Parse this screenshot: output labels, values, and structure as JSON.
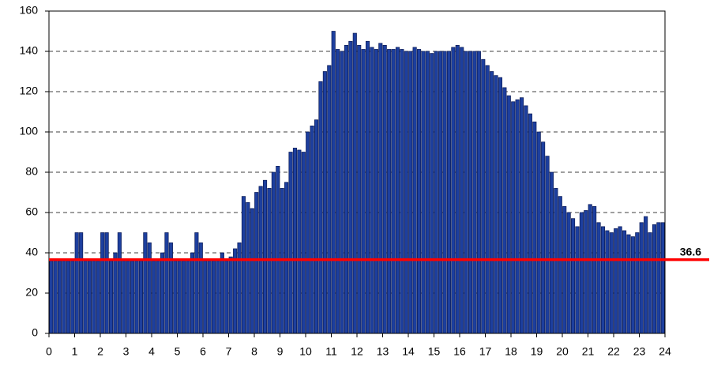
{
  "chart_data": {
    "type": "bar",
    "values": [
      36,
      36,
      36,
      36,
      36,
      36,
      50,
      50,
      36,
      36,
      36,
      36,
      50,
      50,
      36,
      40,
      50,
      36,
      36,
      36,
      36,
      36,
      50,
      45,
      36,
      36,
      40,
      50,
      45,
      36,
      36,
      36,
      36,
      40,
      50,
      45,
      36,
      36,
      36,
      36,
      40,
      36,
      38,
      42,
      45,
      68,
      65,
      62,
      70,
      73,
      76,
      72,
      80,
      83,
      72,
      75,
      90,
      92,
      91,
      90,
      100,
      103,
      106,
      125,
      130,
      133,
      150,
      141,
      140,
      143,
      145,
      149,
      143,
      141,
      145,
      142,
      141,
      144,
      143,
      141,
      141,
      142,
      141,
      140,
      140,
      142,
      141,
      140,
      140,
      139,
      140,
      140,
      140,
      140,
      142,
      143,
      142,
      140,
      140,
      140,
      140,
      136,
      133,
      130,
      128,
      127,
      122,
      118,
      115,
      116,
      117,
      113,
      109,
      105,
      100,
      95,
      88,
      80,
      72,
      68,
      63,
      60,
      57,
      53,
      60,
      61,
      64,
      63,
      55,
      53,
      51,
      50,
      52,
      53,
      51,
      49,
      48,
      50,
      55,
      58,
      50,
      54,
      55,
      55
    ],
    "color": "#1d3f9e",
    "xlim": [
      0,
      24
    ],
    "xticks": [
      0,
      1,
      2,
      3,
      4,
      5,
      6,
      7,
      8,
      9,
      10,
      11,
      12,
      13,
      14,
      15,
      16,
      17,
      18,
      19,
      20,
      21,
      22,
      23,
      24
    ],
    "ylim": [
      0,
      160
    ],
    "yticks": [
      0,
      20,
      40,
      60,
      80,
      100,
      120,
      140,
      160
    ],
    "grid": true,
    "reference_line": {
      "value": 36.6,
      "color": "#ff0000"
    }
  }
}
